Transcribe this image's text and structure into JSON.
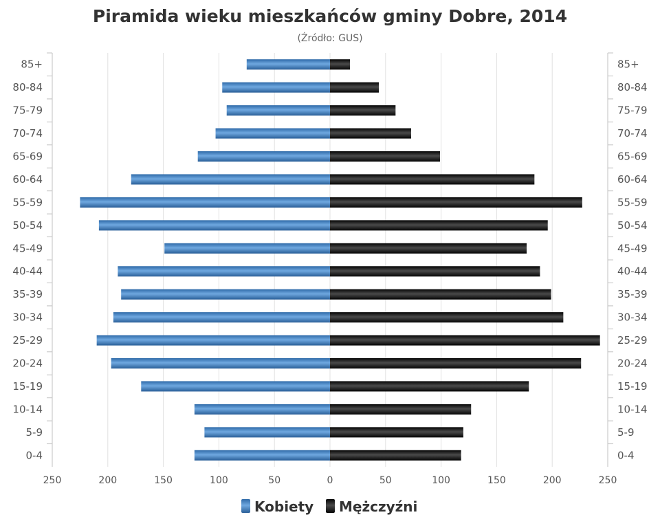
{
  "chart_data": {
    "type": "bar",
    "orientation": "horizontal",
    "title": "Piramida wieku mieszkańców gminy Dobre, 2014",
    "subtitle": "(Źródło: GUS)",
    "categories": [
      "85+",
      "80-84",
      "75-79",
      "70-74",
      "65-69",
      "60-64",
      "55-59",
      "50-54",
      "45-49",
      "40-44",
      "35-39",
      "30-34",
      "25-29",
      "20-24",
      "15-19",
      "10-14",
      "5-9",
      "0-4"
    ],
    "series": [
      {
        "name": "Kobiety",
        "color": "#3f7fc0",
        "values": [
          -75,
          -97,
          -93,
          -103,
          -119,
          -179,
          -225,
          -208,
          -149,
          -191,
          -188,
          -195,
          -210,
          -197,
          -170,
          -122,
          -113,
          -122
        ]
      },
      {
        "name": "Mężczyźni",
        "color": "#1a1a1a",
        "values": [
          18,
          44,
          59,
          73,
          99,
          184,
          227,
          196,
          177,
          189,
          199,
          210,
          243,
          226,
          179,
          127,
          120,
          118
        ]
      }
    ],
    "xlim": [
      -250,
      250
    ],
    "xticks": [
      "250",
      "200",
      "150",
      "100",
      "50",
      "0",
      "50",
      "100",
      "150",
      "200",
      "250"
    ],
    "grid": true,
    "legend": "bottom-center"
  }
}
